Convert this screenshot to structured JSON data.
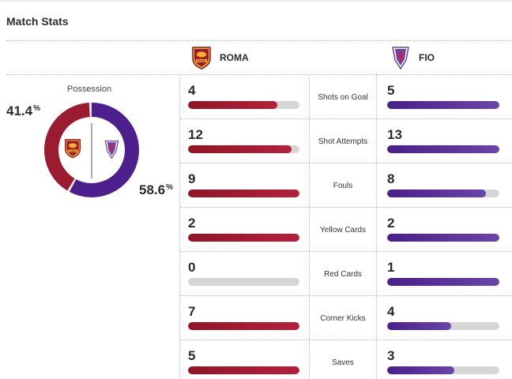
{
  "header": {
    "title": "Match Stats"
  },
  "teams": {
    "home": {
      "name": "ROMA",
      "color": "#9b1b30",
      "logo_icon": "roma-crest-icon",
      "logo_text": "ROMA"
    },
    "away": {
      "name": "FIO",
      "color": "#4d1f8c",
      "logo_icon": "fiorentina-crest-icon"
    }
  },
  "possession": {
    "label": "Possession",
    "home_pct_value": "41.4",
    "away_pct_value": "58.6",
    "pct_symbol": "%",
    "home_fraction": 0.414,
    "away_fraction": 0.586
  },
  "stats": [
    {
      "label": "Shots on Goal",
      "home": 4,
      "away": 5,
      "home_fraction": 0.8,
      "away_fraction": 1.0
    },
    {
      "label": "Shot Attempts",
      "home": 12,
      "away": 13,
      "home_fraction": 0.93,
      "away_fraction": 1.0
    },
    {
      "label": "Fouls",
      "home": 9,
      "away": 8,
      "home_fraction": 1.0,
      "away_fraction": 0.88
    },
    {
      "label": "Yellow Cards",
      "home": 2,
      "away": 2,
      "home_fraction": 1.0,
      "away_fraction": 1.0
    },
    {
      "label": "Red Cards",
      "home": 0,
      "away": 1,
      "home_fraction": 0.0,
      "away_fraction": 1.0
    },
    {
      "label": "Corner Kicks",
      "home": 7,
      "away": 4,
      "home_fraction": 1.0,
      "away_fraction": 0.57
    },
    {
      "label": "Saves",
      "home": 5,
      "away": 3,
      "home_fraction": 1.0,
      "away_fraction": 0.6
    }
  ]
}
